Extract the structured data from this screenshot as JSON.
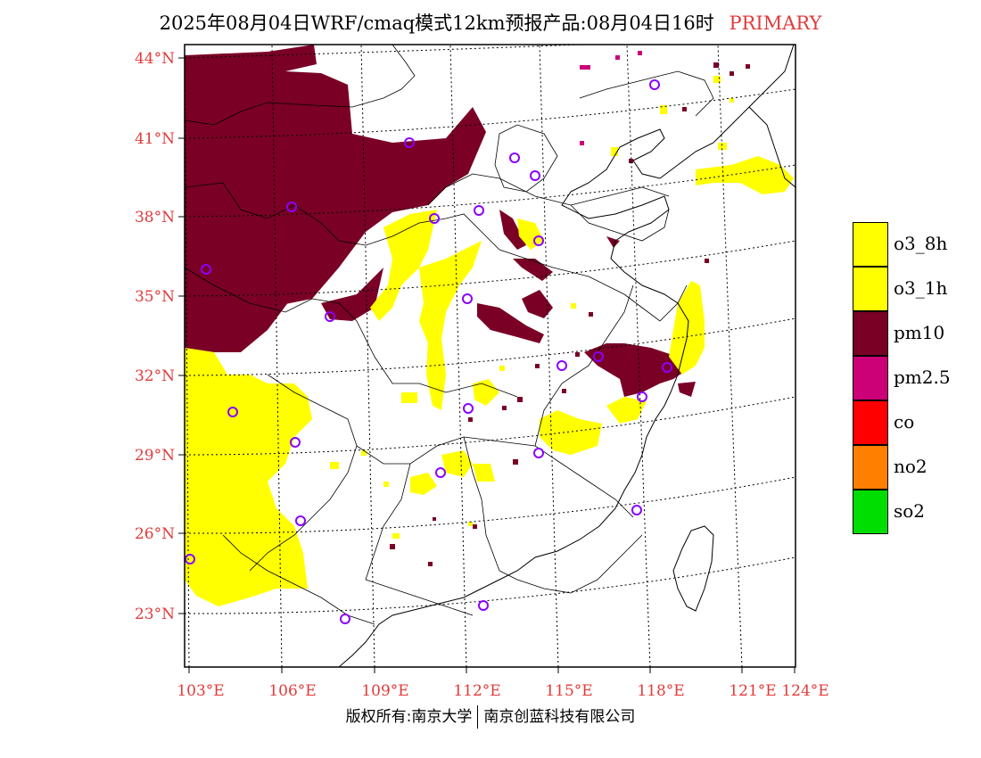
{
  "title": {
    "main": "2025年08月04日WRF/cmaq模式12km预报产品:08月04日16时",
    "label": "PRIMARY"
  },
  "map": {
    "lat_labels": [
      "44°N",
      "41°N",
      "38°N",
      "35°N",
      "32°N",
      "29°N",
      "26°N",
      "23°N"
    ],
    "lon_labels": [
      "103°E",
      "106°E",
      "109°E",
      "112°E",
      "115°E",
      "118°E",
      "121°E",
      "124°E"
    ],
    "label_color": "#e23a3a"
  },
  "legend": [
    {
      "name": "o3_8h",
      "color": "#ffff00"
    },
    {
      "name": "o3_1h",
      "color": "#ffff00"
    },
    {
      "name": "pm10",
      "color": "#7a0026"
    },
    {
      "name": "pm2.5",
      "color": "#cc0077"
    },
    {
      "name": "co",
      "color": "#ff0000"
    },
    {
      "name": "no2",
      "color": "#ff8000"
    },
    {
      "name": "so2",
      "color": "#00dd00"
    }
  ],
  "footer": {
    "left": "版权所有:南京大学",
    "right": "南京创蓝科技有限公司"
  }
}
